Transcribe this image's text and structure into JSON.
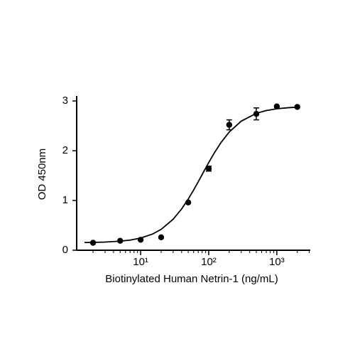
{
  "chart_data": {
    "type": "scatter",
    "x_label": "Biotinylated Human Netrin-1 (ng/mL)",
    "y_label": "OD 450nm",
    "x_scale": "log",
    "xlim": [
      1.15,
      3100
    ],
    "ylim": [
      0,
      3.1
    ],
    "xticks": [
      {
        "value": 10,
        "label": "10¹"
      },
      {
        "value": 100,
        "label": "10²"
      },
      {
        "value": 1000,
        "label": "10³"
      }
    ],
    "minor_xticks": [
      2,
      3,
      4,
      5,
      6,
      7,
      8,
      9,
      20,
      30,
      40,
      50,
      60,
      70,
      80,
      90,
      200,
      300,
      400,
      500,
      600,
      700,
      800,
      900,
      2000,
      3000
    ],
    "yticks": [
      0,
      1,
      2,
      3
    ],
    "series": [
      {
        "color": "#000000",
        "x": [
          2,
          5,
          10,
          20,
          50,
          100,
          200,
          500,
          1000,
          2000
        ],
        "values": [
          0.15,
          0.19,
          0.21,
          0.26,
          0.96,
          1.64,
          2.52,
          2.74,
          2.89,
          2.88
        ],
        "errors": [
          null,
          null,
          null,
          null,
          null,
          0.05,
          0.1,
          0.12,
          null,
          null
        ]
      },
      {
        "type": "line",
        "color": "#000000",
        "x": [
          1.5,
          2,
          3,
          5,
          7,
          10,
          15,
          20,
          30,
          40,
          50,
          60,
          70,
          80,
          100,
          120,
          150,
          200,
          300,
          500,
          700,
          1000,
          1500,
          2000
        ],
        "values": [
          0.155,
          0.157,
          0.164,
          0.182,
          0.204,
          0.245,
          0.326,
          0.419,
          0.622,
          0.83,
          1.028,
          1.21,
          1.374,
          1.52,
          1.762,
          1.949,
          2.156,
          2.376,
          2.594,
          2.751,
          2.807,
          2.843,
          2.865,
          2.874
        ]
      }
    ]
  }
}
